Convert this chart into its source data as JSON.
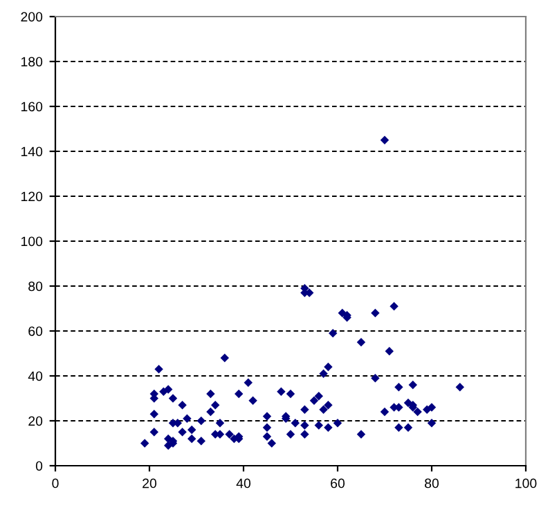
{
  "chart_data": {
    "type": "scatter",
    "xlim": [
      0,
      100
    ],
    "ylim": [
      0,
      200
    ],
    "xticks": [
      0,
      20,
      40,
      60,
      80,
      100
    ],
    "yticks": [
      0,
      20,
      40,
      60,
      80,
      100,
      120,
      140,
      160,
      180,
      200
    ],
    "grid": "y",
    "marker": "diamond",
    "series": [
      {
        "color": "#000080",
        "x": [
          19,
          21,
          21,
          21,
          21,
          22,
          23,
          24,
          24,
          24,
          25,
          25,
          25,
          25,
          26,
          27,
          27,
          28,
          29,
          29,
          31,
          31,
          33,
          33,
          34,
          34,
          35,
          35,
          36,
          37,
          38,
          39,
          39,
          39,
          41,
          42,
          45,
          45,
          45,
          46,
          48,
          49,
          49,
          50,
          50,
          51,
          53,
          53,
          54,
          53,
          53,
          53,
          55,
          56,
          56,
          57,
          57,
          58,
          58,
          58,
          59,
          60,
          61,
          62,
          62,
          65,
          65,
          68,
          68,
          70,
          70,
          71,
          72,
          72,
          73,
          73,
          73,
          75,
          75,
          76,
          76,
          76,
          77,
          79,
          80,
          80,
          86
        ],
        "values": [
          10,
          32,
          30,
          23,
          15,
          43,
          33,
          34,
          12,
          9,
          30,
          11,
          10,
          19,
          19,
          27,
          15,
          21,
          16,
          12,
          20,
          11,
          32,
          24,
          27,
          14,
          14,
          19,
          48,
          14,
          12,
          13,
          32,
          12,
          37,
          29,
          22,
          17,
          13,
          10,
          33,
          22,
          21,
          32,
          14,
          19,
          79,
          77,
          77,
          25,
          18,
          14,
          29,
          31,
          18,
          41,
          25,
          44,
          27,
          17,
          59,
          19,
          68,
          67,
          66,
          55,
          14,
          68,
          39,
          145,
          24,
          51,
          71,
          26,
          35,
          26,
          17,
          28,
          17,
          36,
          27,
          26,
          24,
          25,
          26,
          19,
          35
        ]
      }
    ]
  }
}
